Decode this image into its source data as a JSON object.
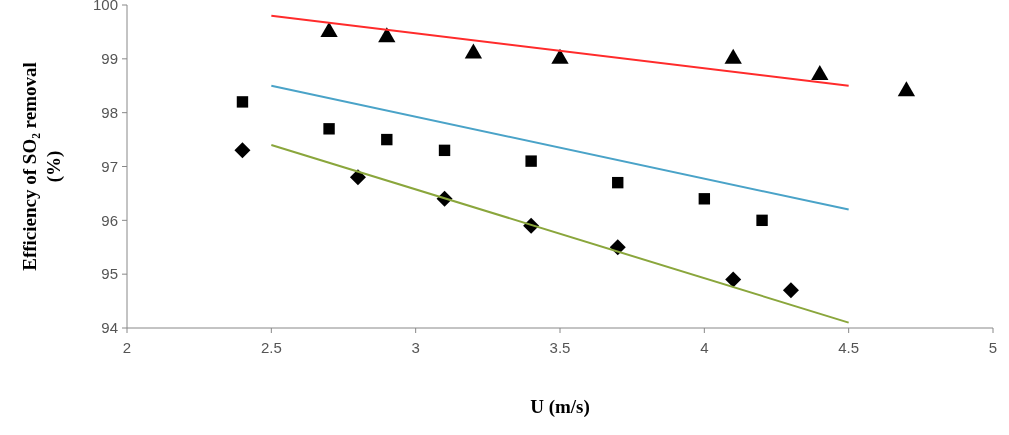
{
  "chart_data": {
    "type": "scatter",
    "xlabel": "U (m/s)",
    "ylabel": "Efficiency of SO₂ removal\n(%)",
    "xlim": [
      2,
      5
    ],
    "xticks": [
      2,
      2.5,
      3,
      3.5,
      4,
      4.5,
      5
    ],
    "ylim": [
      94,
      100
    ],
    "yticks": [
      94,
      95,
      96,
      97,
      98,
      99,
      100
    ],
    "grid": false,
    "series": [
      {
        "marker": "triangle",
        "color": "#000000",
        "x": [
          2.7,
          2.9,
          3.2,
          3.5,
          4.1,
          4.4,
          4.7
        ],
        "values": [
          99.5,
          99.4,
          99.1,
          99.0,
          99.0,
          98.7,
          98.4
        ]
      },
      {
        "marker": "square",
        "color": "#000000",
        "x": [
          2.4,
          2.7,
          2.9,
          3.1,
          3.4,
          3.7,
          4.0,
          4.2
        ],
        "values": [
          98.2,
          97.7,
          97.5,
          97.3,
          97.1,
          96.7,
          96.4,
          96.0
        ]
      },
      {
        "marker": "diamond",
        "color": "#000000",
        "x": [
          2.4,
          2.8,
          3.1,
          3.4,
          3.7,
          4.1,
          4.3
        ],
        "values": [
          97.3,
          96.8,
          96.4,
          95.9,
          95.5,
          94.9,
          94.7
        ]
      },
      {
        "type": "line",
        "color": "#ff2b2b",
        "x": [
          2.5,
          4.5
        ],
        "values": [
          99.8,
          98.5
        ]
      },
      {
        "type": "line",
        "color": "#4aa3c8",
        "x": [
          2.5,
          4.5
        ],
        "values": [
          98.5,
          96.2
        ]
      },
      {
        "type": "line",
        "color": "#8aa63c",
        "x": [
          2.5,
          4.5
        ],
        "values": [
          97.4,
          94.1
        ]
      }
    ]
  }
}
